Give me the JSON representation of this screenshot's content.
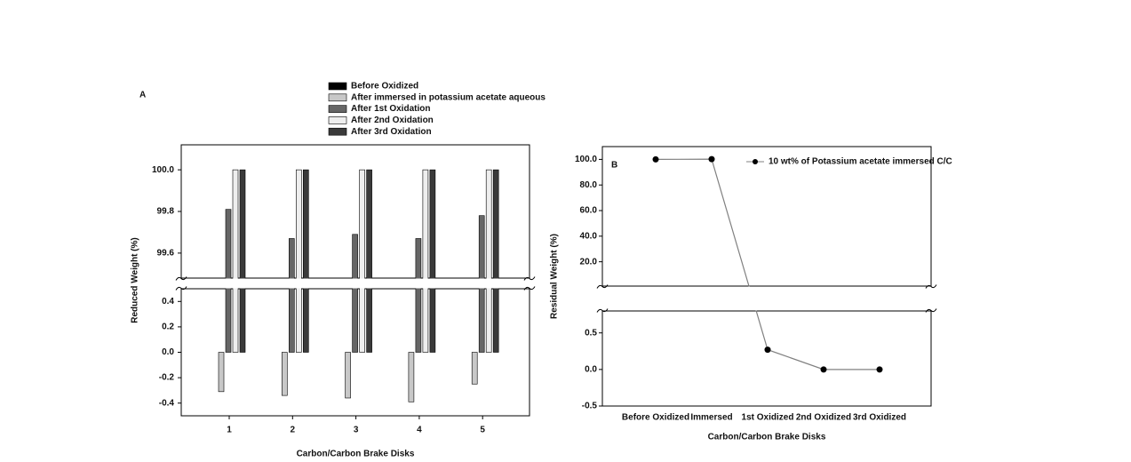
{
  "chart_data": [
    {
      "type": "bar",
      "panel_label": "A",
      "x_label": "Carbon/Carbon Brake Disks",
      "y_label": "Reduced Weight (%)",
      "categories": [
        "1",
        "2",
        "3",
        "4",
        "5"
      ],
      "series": [
        {
          "name": "Before Oxidized",
          "color": "#000000",
          "values": [
            0,
            0,
            0,
            0,
            0
          ]
        },
        {
          "name": "After immersed in potassium acetate aqueous",
          "color": "#c8c8c8",
          "values": [
            -0.31,
            -0.34,
            -0.36,
            -0.39,
            -0.25
          ]
        },
        {
          "name": "After 1st Oxidation",
          "color": "#666666",
          "values": [
            99.81,
            99.67,
            99.69,
            99.67,
            99.78
          ]
        },
        {
          "name": "After 2nd Oxidation",
          "color": "#eeeeee",
          "values": [
            100,
            100,
            100,
            100,
            100
          ]
        },
        {
          "name": "After 3rd Oxidation",
          "color": "#3a3a3a",
          "values": [
            100,
            100,
            100,
            100,
            100
          ]
        }
      ],
      "y_segments": [
        {
          "ylim": [
            -0.5,
            0.5
          ],
          "yticks": [
            -0.4,
            -0.2,
            {
              "value": 0,
              "label": "0.0"
            },
            0.2,
            0.4
          ]
        },
        {
          "ylim": [
            99.48,
            100.12
          ],
          "yticks": [
            99.6,
            99.8,
            {
              "value": 100,
              "label": "100.0"
            }
          ]
        }
      ],
      "grid": false
    },
    {
      "type": "line",
      "panel_label": "B",
      "x_label": "Carbon/Carbon Brake Disks",
      "y_label": "Residual Weight (%)",
      "categories": [
        "Before Oxidized",
        "Immersed",
        "1st Oxidized",
        "2nd Oxidized",
        "3rd Oxidized"
      ],
      "series": [
        {
          "name": "10 wt% of Potassium acetate immersed C/C",
          "color": "#808080",
          "marker_color": "#000000",
          "values": [
            100,
            100.2,
            0.27,
            0,
            0
          ]
        }
      ],
      "y_segments": [
        {
          "ylim": [
            -0.5,
            0.8
          ],
          "yticks": [
            -0.5,
            {
              "value": 0,
              "label": "0.0"
            },
            0.5
          ]
        },
        {
          "ylim": [
            1,
            110
          ],
          "yticks": [
            {
              "value": 20,
              "label": "20.0"
            },
            {
              "value": 40,
              "label": "40.0"
            },
            {
              "value": 60,
              "label": "60.0"
            },
            {
              "value": 80,
              "label": "80.0"
            },
            {
              "value": 100,
              "label": "100.0"
            }
          ]
        }
      ],
      "grid": false
    }
  ]
}
